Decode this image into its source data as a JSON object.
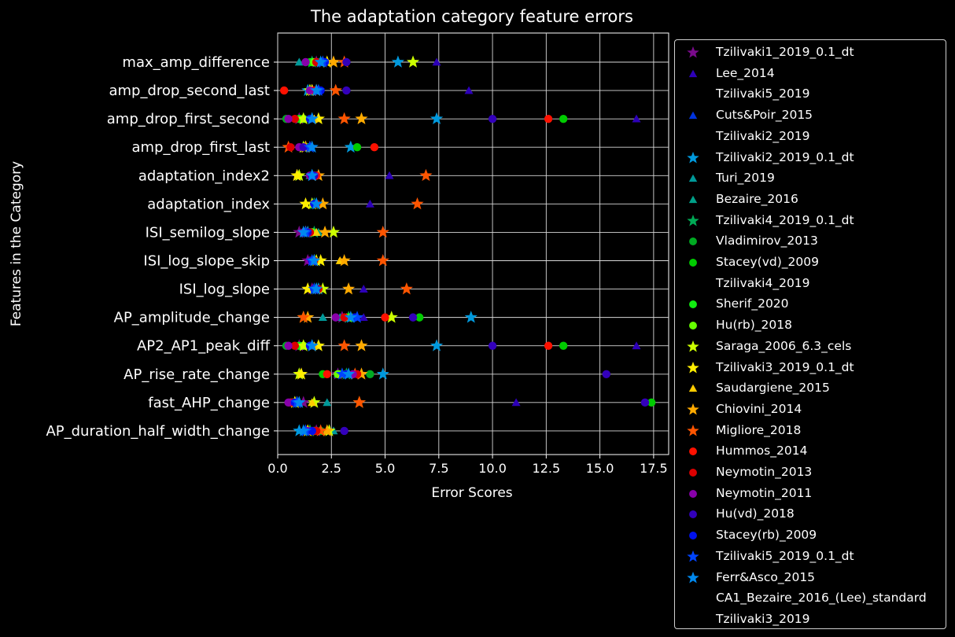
{
  "chart_data": {
    "type": "scatter",
    "title": "The adaptation category feature errors",
    "xlabel": "Error Scores",
    "ylabel": "Features in the Category",
    "xlim": [
      0,
      18.2
    ],
    "xticks": [
      0.0,
      2.5,
      5.0,
      7.5,
      10.0,
      12.5,
      15.0,
      17.5
    ],
    "xtick_labels": [
      "0.0",
      "2.5",
      "5.0",
      "7.5",
      "10.0",
      "12.5",
      "15.0",
      "17.5"
    ],
    "grid": true,
    "legend_position": "outside-right",
    "categories": [
      "max_amp_difference",
      "amp_drop_second_last",
      "amp_drop_first_second",
      "amp_drop_first_last",
      "adaptation_index2",
      "adaptation_index",
      "ISI_semilog_slope",
      "ISI_log_slope_skip",
      "ISI_log_slope",
      "AP_amplitude_change",
      "AP2_AP1_peak_diff",
      "AP_rise_rate_change",
      "fast_AHP_change",
      "AP_duration_half_width_change"
    ],
    "series": [
      {
        "name": "Tzilivaki1_2019_0.1_dt",
        "marker": "star",
        "color": "#7a0a8c",
        "values": [
          1.8,
          1.6,
          1.0,
          1.3,
          0.9,
          1.6,
          1.0,
          1.4,
          1.6,
          3.0,
          1.0,
          2.8,
          1.2,
          1.8
        ]
      },
      {
        "name": "Lee_2014",
        "marker": "triangle",
        "color": "#2d00b8",
        "values": [
          7.4,
          8.9,
          16.7,
          1.2,
          5.2,
          4.3,
          1.3,
          1.8,
          4.0,
          4.0,
          16.7,
          3.0,
          11.1,
          1.6
        ]
      },
      {
        "name": "Tzilivaki5_2019",
        "marker": "none",
        "color": "#ffffff",
        "values": []
      },
      {
        "name": "Cuts&Poir_2015",
        "marker": "triangle",
        "color": "#0033dd",
        "values": [
          2.2,
          1.8,
          1.5,
          1.4,
          1.6,
          1.7,
          1.4,
          1.7,
          1.9,
          3.5,
          1.5,
          3.3,
          0.8,
          1.3
        ]
      },
      {
        "name": "Tzilivaki2_2019",
        "marker": "none",
        "color": "#ffffff",
        "values": []
      },
      {
        "name": "Tzilivaki2_2019_0.1_dt",
        "marker": "star",
        "color": "#0099dd",
        "values": [
          5.6,
          1.4,
          7.4,
          3.4,
          1.6,
          1.8,
          1.4,
          1.7,
          1.9,
          9.0,
          7.4,
          4.9,
          0.9,
          1.0
        ]
      },
      {
        "name": "Turi_2019",
        "marker": "triangle",
        "color": "#009999",
        "values": [
          1.0,
          1.7,
          1.2,
          1.3,
          1.7,
          1.8,
          1.8,
          1.6,
          1.8,
          2.1,
          1.2,
          2.8,
          2.3,
          2.6
        ]
      },
      {
        "name": "Bezaire_2016",
        "marker": "triangle",
        "color": "#00a088",
        "values": [
          1.9,
          1.5,
          1.5,
          1.4,
          1.5,
          1.7,
          1.9,
          1.6,
          1.7,
          2.9,
          1.5,
          3.1,
          0.7,
          1.6
        ]
      },
      {
        "name": "Tzilivaki4_2019_0.1_dt",
        "marker": "star",
        "color": "#00aa55",
        "values": [
          1.6,
          1.5,
          1.6,
          1.2,
          1.6,
          1.7,
          1.7,
          1.7,
          1.8,
          3.3,
          1.6,
          3.2,
          0.8,
          1.5
        ]
      },
      {
        "name": "Vladimirov_2013",
        "marker": "circle",
        "color": "#00aa22",
        "values": [
          2.0,
          1.8,
          0.4,
          1.3,
          1.7,
          1.8,
          1.6,
          1.7,
          1.9,
          3.4,
          0.4,
          4.3,
          0.6,
          2.0
        ]
      },
      {
        "name": "Stacey(vd)_2009",
        "marker": "circle",
        "color": "#00cc00",
        "values": [
          1.5,
          1.6,
          13.3,
          3.7,
          1.7,
          1.8,
          1.5,
          1.6,
          1.8,
          6.6,
          13.3,
          2.1,
          17.4,
          1.8
        ]
      },
      {
        "name": "Tzilivaki4_2019",
        "marker": "none",
        "color": "#ffffff",
        "values": []
      },
      {
        "name": "Sherif_2020",
        "marker": "circle",
        "color": "#11ee11",
        "values": [
          1.6,
          1.7,
          1.0,
          1.4,
          1.7,
          1.8,
          1.6,
          1.6,
          1.8,
          3.3,
          1.0,
          2.9,
          0.7,
          1.7
        ]
      },
      {
        "name": "Hu(rb)_2018",
        "marker": "circle",
        "color": "#66ff00",
        "values": [
          1.7,
          1.6,
          1.2,
          1.5,
          1.6,
          1.7,
          1.6,
          1.6,
          1.8,
          3.4,
          1.2,
          2.8,
          0.9,
          1.5
        ]
      },
      {
        "name": "Saraga_2006_6.3_cels",
        "marker": "star",
        "color": "#ccff00",
        "values": [
          6.3,
          1.5,
          1.2,
          1.2,
          1.0,
          1.6,
          2.6,
          1.8,
          2.1,
          5.3,
          1.2,
          1.0,
          1.7,
          2.4
        ]
      },
      {
        "name": "Tzilivaki3_2019_0.1_dt",
        "marker": "star",
        "color": "#ffee00",
        "values": [
          2.3,
          1.6,
          1.9,
          1.3,
          0.9,
          1.3,
          1.3,
          2.0,
          1.4,
          1.2,
          1.9,
          1.1,
          0.8,
          1.4
        ]
      },
      {
        "name": "Saudargiene_2015",
        "marker": "triangle",
        "color": "#ffcc00",
        "values": [
          2.0,
          1.9,
          1.7,
          1.3,
          1.7,
          1.8,
          1.8,
          2.9,
          1.8,
          3.2,
          1.7,
          3.0,
          1.6,
          2.3
        ]
      },
      {
        "name": "Chiovini_2014",
        "marker": "star",
        "color": "#ffaa00",
        "values": [
          2.6,
          1.8,
          3.9,
          1.3,
          1.9,
          2.1,
          2.2,
          3.1,
          3.3,
          1.4,
          3.9,
          3.9,
          3.8,
          2.3
        ]
      },
      {
        "name": "Migliore_2018",
        "marker": "star",
        "color": "#ff5500",
        "values": [
          3.1,
          2.7,
          3.1,
          0.5,
          6.9,
          6.5,
          4.9,
          4.9,
          6.0,
          1.2,
          3.1,
          3.6,
          3.8,
          2.0
        ]
      },
      {
        "name": "Hummos_2014",
        "marker": "circle",
        "color": "#ff1100",
        "values": [
          1.8,
          0.3,
          12.6,
          4.5,
          1.8,
          1.7,
          1.5,
          1.7,
          1.8,
          5.0,
          12.6,
          2.3,
          0.7,
          1.7
        ]
      },
      {
        "name": "Neymotin_2013",
        "marker": "circle",
        "color": "#dd0000",
        "values": [
          1.8,
          1.7,
          0.8,
          0.6,
          1.7,
          1.8,
          1.5,
          1.7,
          1.9,
          3.1,
          0.8,
          3.7,
          0.6,
          1.8
        ]
      },
      {
        "name": "Neymotin_2011",
        "marker": "circle",
        "color": "#8800aa",
        "values": [
          1.3,
          1.5,
          0.5,
          1.0,
          1.5,
          1.7,
          1.2,
          1.5,
          1.7,
          2.7,
          0.5,
          3.5,
          0.5,
          1.4
        ]
      },
      {
        "name": "Hu(vd)_2018",
        "marker": "circle",
        "color": "#3300bb",
        "values": [
          3.2,
          3.2,
          10.0,
          1.2,
          1.7,
          1.7,
          1.4,
          1.6,
          1.8,
          6.3,
          10.0,
          15.3,
          17.1,
          3.1
        ]
      },
      {
        "name": "Stacey(rb)_2009",
        "marker": "circle",
        "color": "#0011ee",
        "values": [
          2.2,
          2.0,
          1.5,
          1.5,
          1.6,
          1.7,
          1.3,
          1.6,
          1.7,
          3.6,
          1.5,
          3.2,
          0.8,
          1.6
        ]
      },
      {
        "name": "Tzilivaki5_2019_0.1_dt",
        "marker": "star",
        "color": "#0044ff",
        "values": [
          2.1,
          1.9,
          1.6,
          1.5,
          1.6,
          1.8,
          1.3,
          1.6,
          1.7,
          3.7,
          1.6,
          3.0,
          0.9,
          1.3
        ]
      },
      {
        "name": "Ferr&Asco_2015",
        "marker": "star",
        "color": "#0088ee",
        "values": [
          2.0,
          1.8,
          1.6,
          1.6,
          1.6,
          1.8,
          1.2,
          1.7,
          1.8,
          3.4,
          1.6,
          3.3,
          1.0,
          1.2
        ]
      },
      {
        "name": "CA1_Bezaire_2016_(Lee)_standard",
        "marker": "none",
        "color": "#ffffff",
        "values": []
      },
      {
        "name": "Tzilivaki3_2019",
        "marker": "none",
        "color": "#ffffff",
        "values": []
      }
    ]
  }
}
